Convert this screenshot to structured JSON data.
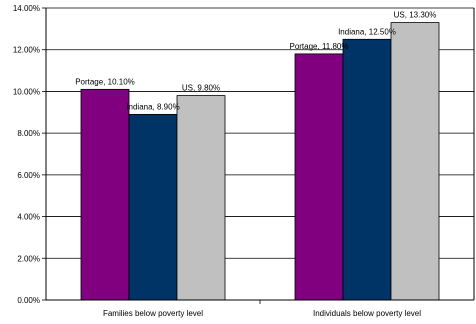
{
  "chart_data": {
    "type": "bar",
    "categories": [
      "Families below poverty level",
      "Individuals below poverty level"
    ],
    "series": [
      {
        "name": "Portage",
        "values": [
          10.1,
          11.8
        ],
        "color": "#800080"
      },
      {
        "name": "Indiana",
        "values": [
          8.9,
          12.5
        ],
        "color": "#003366"
      },
      {
        "name": "US",
        "values": [
          9.8,
          13.3
        ],
        "color": "#c0c0c0"
      }
    ],
    "data_labels": [
      [
        "Portage, 10.10%",
        "Portage, 11.80%"
      ],
      [
        "Indiana, 8.90%",
        "Indiana, 12.50%"
      ],
      [
        "US, 9.80%",
        "US, 13.30%"
      ]
    ],
    "y_ticks": [
      "0.00%",
      "2.00%",
      "4.00%",
      "6.00%",
      "8.00%",
      "10.00%",
      "12.00%",
      "14.00%"
    ],
    "ylim": [
      0,
      14
    ],
    "grid": true,
    "legend": "none",
    "title": "",
    "xlabel": "",
    "ylabel": ""
  }
}
